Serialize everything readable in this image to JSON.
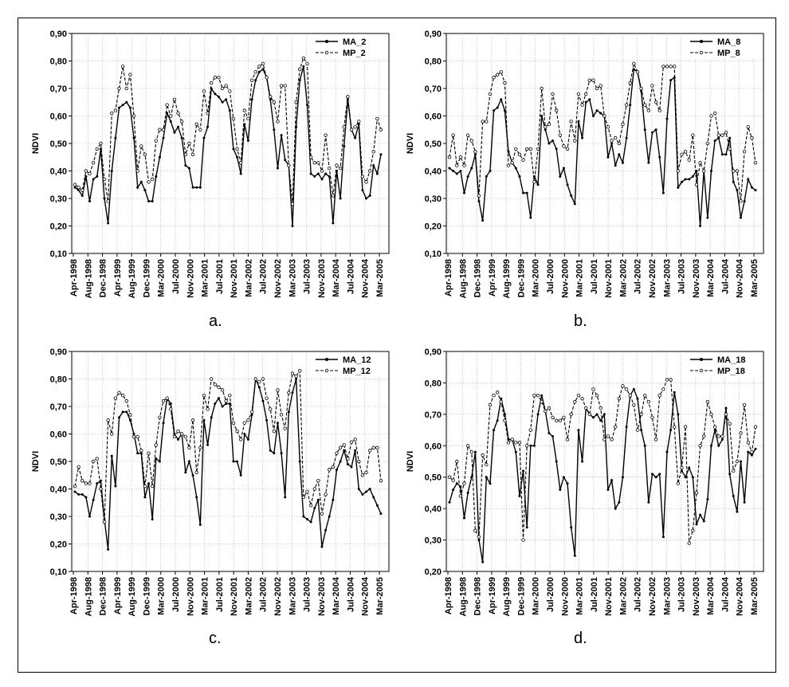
{
  "chart_data": [
    {
      "type": "line",
      "caption": "a.",
      "ylabel": "NDVI",
      "ylim": [
        0.1,
        0.9
      ],
      "yticks": [
        "0,10",
        "0,20",
        "0,30",
        "0,40",
        "0,50",
        "0,60",
        "0,70",
        "0,80",
        "0,90"
      ],
      "x_tick_labels": [
        "Apr-1998",
        "Aug-1998",
        "Dec-1998",
        "Apr-1999",
        "Aug-1999",
        "Dec-1999",
        "Mar-2000",
        "Jul-2000",
        "Nov-2000",
        "Mar-2001",
        "Jul-2001",
        "Nov-2001",
        "Mar-2002",
        "Jul-2002",
        "Nov-2002",
        "Mar-2003",
        "Jul-2003",
        "Nov-2003",
        "Mar-2004",
        "Jul-2004",
        "Nov-2004",
        "Mar-2005"
      ],
      "grid": true,
      "legend": "top-right",
      "series": [
        {
          "name": "MA_2",
          "style": "solid",
          "values": [
            0.34,
            0.33,
            0.31,
            0.38,
            0.29,
            0.37,
            0.38,
            0.48,
            0.3,
            0.21,
            0.4,
            0.52,
            0.63,
            0.64,
            0.65,
            0.63,
            0.52,
            0.34,
            0.36,
            0.33,
            0.29,
            0.29,
            0.38,
            0.45,
            0.52,
            0.61,
            0.58,
            0.54,
            0.56,
            0.52,
            0.42,
            0.41,
            0.34,
            0.34,
            0.34,
            0.52,
            0.56,
            0.7,
            0.68,
            0.67,
            0.65,
            0.66,
            0.62,
            0.48,
            0.45,
            0.39,
            0.57,
            0.51,
            0.66,
            0.73,
            0.76,
            0.77,
            0.74,
            0.66,
            0.55,
            0.41,
            0.53,
            0.44,
            0.42,
            0.2,
            0.56,
            0.73,
            0.78,
            0.64,
            0.39,
            0.38,
            0.39,
            0.37,
            0.39,
            0.38,
            0.21,
            0.4,
            0.3,
            0.49,
            0.66,
            0.55,
            0.52,
            0.57,
            0.33,
            0.3,
            0.31,
            0.42,
            0.39,
            0.46
          ]
        },
        {
          "name": "MP_2",
          "style": "dashed",
          "values": [
            0.35,
            0.34,
            0.33,
            0.4,
            0.39,
            0.43,
            0.48,
            0.5,
            0.37,
            0.29,
            0.61,
            0.62,
            0.7,
            0.78,
            0.7,
            0.75,
            0.6,
            0.4,
            0.49,
            0.46,
            0.36,
            0.37,
            0.51,
            0.55,
            0.55,
            0.64,
            0.6,
            0.66,
            0.61,
            0.58,
            0.46,
            0.5,
            0.46,
            0.57,
            0.55,
            0.69,
            0.61,
            0.72,
            0.74,
            0.74,
            0.7,
            0.71,
            0.69,
            0.59,
            0.48,
            0.43,
            0.62,
            0.59,
            0.73,
            0.76,
            0.78,
            0.79,
            0.74,
            0.67,
            0.65,
            0.58,
            0.71,
            0.71,
            0.42,
            0.28,
            0.65,
            0.77,
            0.81,
            0.79,
            0.45,
            0.43,
            0.43,
            0.4,
            0.53,
            0.41,
            0.31,
            0.42,
            0.41,
            0.56,
            0.67,
            0.55,
            0.56,
            0.58,
            0.38,
            0.36,
            0.4,
            0.47,
            0.59,
            0.55
          ]
        }
      ]
    },
    {
      "type": "line",
      "caption": "b.",
      "ylabel": "NDVI",
      "ylim": [
        0.1,
        0.9
      ],
      "yticks": [
        "0,10",
        "0,20",
        "0,30",
        "0,40",
        "0,50",
        "0,60",
        "0,70",
        "0,80",
        "0,90"
      ],
      "x_tick_labels": [
        "Apr-1998",
        "Aug-1998",
        "Dec-1998",
        "Apr-1999",
        "Aug-1999",
        "Dec-1999",
        "Mar-2000",
        "Jul-2000",
        "Nov-2000",
        "Mar-2001",
        "Jul-2001",
        "Nov-2001",
        "Mar-2002",
        "Jul-2002",
        "Nov-2002",
        "Mar-2003",
        "Jul-2003",
        "Nov-2003",
        "Mar-2004",
        "Jul-2004",
        "Nov-2004",
        "Mar-2005"
      ],
      "grid": true,
      "legend": "top-right",
      "series": [
        {
          "name": "MA_8",
          "style": "solid",
          "values": [
            0.41,
            0.4,
            0.39,
            0.4,
            0.32,
            0.38,
            0.41,
            0.46,
            0.29,
            0.22,
            0.38,
            0.4,
            0.62,
            0.63,
            0.66,
            0.62,
            0.47,
            0.43,
            0.41,
            0.38,
            0.32,
            0.32,
            0.23,
            0.38,
            0.35,
            0.6,
            0.55,
            0.5,
            0.51,
            0.48,
            0.38,
            0.41,
            0.35,
            0.31,
            0.28,
            0.58,
            0.52,
            0.65,
            0.66,
            0.6,
            0.62,
            0.61,
            0.6,
            0.45,
            0.5,
            0.42,
            0.46,
            0.43,
            0.52,
            0.64,
            0.77,
            0.76,
            0.69,
            0.55,
            0.43,
            0.54,
            0.55,
            0.45,
            0.32,
            0.59,
            0.73,
            0.74,
            0.34,
            0.36,
            0.37,
            0.37,
            0.38,
            0.4,
            0.2,
            0.4,
            0.23,
            0.4,
            0.51,
            0.52,
            0.46,
            0.46,
            0.52,
            0.36,
            0.33,
            0.23,
            0.29,
            0.37,
            0.34,
            0.33
          ]
        },
        {
          "name": "MP_8",
          "style": "dashed",
          "values": [
            0.45,
            0.53,
            0.42,
            0.45,
            0.42,
            0.53,
            0.51,
            0.47,
            0.31,
            0.58,
            0.58,
            0.68,
            0.74,
            0.75,
            0.76,
            0.72,
            0.42,
            0.43,
            0.48,
            0.46,
            0.44,
            0.48,
            0.48,
            0.36,
            0.48,
            0.7,
            0.56,
            0.57,
            0.68,
            0.62,
            0.53,
            0.49,
            0.48,
            0.58,
            0.51,
            0.68,
            0.64,
            0.68,
            0.73,
            0.73,
            0.7,
            0.71,
            0.6,
            0.56,
            0.51,
            0.52,
            0.5,
            0.57,
            0.64,
            0.72,
            0.79,
            0.76,
            0.7,
            0.64,
            0.62,
            0.71,
            0.65,
            0.62,
            0.78,
            0.78,
            0.78,
            0.78,
            0.4,
            0.46,
            0.47,
            0.44,
            0.53,
            0.35,
            0.43,
            0.4,
            0.5,
            0.6,
            0.61,
            0.53,
            0.53,
            0.54,
            0.48,
            0.4,
            0.4,
            0.29,
            0.47,
            0.56,
            0.52,
            0.43
          ]
        }
      ]
    },
    {
      "type": "line",
      "caption": "c.",
      "ylabel": "NDVI",
      "ylim": [
        0.1,
        0.9
      ],
      "yticks": [
        "0,10",
        "0,20",
        "0,30",
        "0,40",
        "0,50",
        "0,60",
        "0,70",
        "0,80",
        "0,90"
      ],
      "x_tick_labels": [
        "Apr-1998",
        "Aug-1998",
        "Dec-1998",
        "Apr-1999",
        "Aug-1999",
        "Dec-1999",
        "Mar-2000",
        "Jul-2000",
        "Nov-2000",
        "Mar-2001",
        "Jul-2001",
        "Nov-2001",
        "Mar-2002",
        "Jul-2002",
        "Nov-2002",
        "Mar-2003",
        "Jul-2003",
        "Nov-2003",
        "Mar-2004",
        "Jul-2004",
        "Nov-2004",
        "Mar-2005"
      ],
      "grid": true,
      "legend": "top-right",
      "series": [
        {
          "name": "MA_12",
          "style": "solid",
          "values": [
            0.39,
            0.38,
            0.38,
            0.37,
            0.3,
            0.36,
            0.42,
            0.43,
            0.29,
            0.18,
            0.52,
            0.41,
            0.66,
            0.68,
            0.68,
            0.65,
            0.6,
            0.53,
            0.53,
            0.37,
            0.42,
            0.29,
            0.51,
            0.5,
            0.64,
            0.73,
            0.71,
            0.6,
            0.58,
            0.6,
            0.46,
            0.5,
            0.45,
            0.37,
            0.27,
            0.65,
            0.56,
            0.66,
            0.71,
            0.73,
            0.7,
            0.71,
            0.71,
            0.5,
            0.5,
            0.45,
            0.6,
            0.58,
            0.67,
            0.8,
            0.77,
            0.72,
            0.65,
            0.54,
            0.53,
            0.64,
            0.53,
            0.37,
            0.68,
            0.75,
            0.8,
            0.5,
            0.3,
            0.29,
            0.28,
            0.33,
            0.36,
            0.19,
            0.25,
            0.3,
            0.36,
            0.47,
            0.5,
            0.54,
            0.49,
            0.48,
            0.54,
            0.4,
            0.38,
            0.39,
            0.4,
            0.37,
            0.34,
            0.31
          ]
        },
        {
          "name": "MP_12",
          "style": "dashed",
          "values": [
            0.41,
            0.48,
            0.43,
            0.42,
            0.42,
            0.5,
            0.51,
            0.4,
            0.28,
            0.65,
            0.6,
            0.73,
            0.75,
            0.74,
            0.72,
            0.67,
            0.59,
            0.59,
            0.54,
            0.41,
            0.53,
            0.41,
            0.56,
            0.66,
            0.72,
            0.73,
            0.69,
            0.59,
            0.61,
            0.6,
            0.59,
            0.55,
            0.65,
            0.46,
            0.55,
            0.74,
            0.69,
            0.8,
            0.78,
            0.77,
            0.76,
            0.72,
            0.74,
            0.64,
            0.61,
            0.58,
            0.64,
            0.65,
            0.68,
            0.8,
            0.79,
            0.8,
            0.73,
            0.69,
            0.61,
            0.76,
            0.67,
            0.62,
            0.75,
            0.82,
            0.81,
            0.83,
            0.37,
            0.39,
            0.34,
            0.4,
            0.43,
            0.31,
            0.38,
            0.47,
            0.48,
            0.53,
            0.55,
            0.56,
            0.51,
            0.57,
            0.58,
            0.5,
            0.45,
            0.46,
            0.54,
            0.55,
            0.55,
            0.43
          ]
        }
      ]
    },
    {
      "type": "line",
      "caption": "d.",
      "ylabel": "NDVI",
      "ylim": [
        0.2,
        0.9
      ],
      "yticks": [
        "0,20",
        "0,30",
        "0,40",
        "0,50",
        "0,60",
        "0,70",
        "0,80",
        "0,90"
      ],
      "x_tick_labels": [
        "Apr-1998",
        "Aug-1998",
        "Dec-1998",
        "Apr-1999",
        "Aug-1999",
        "Dec-1999",
        "Mar-2000",
        "Jul-2000",
        "Nov-2000",
        "Mar-2001",
        "Jul-2001",
        "Nov-2001",
        "Mar-2002",
        "Jul-2002",
        "Nov-2002",
        "Mar-2003",
        "Jul-2003",
        "Nov-2003",
        "Mar-2004",
        "Jul-2004",
        "Nov-2004",
        "Mar-2005"
      ],
      "grid": true,
      "legend": "top-right",
      "series": [
        {
          "name": "MA_18",
          "style": "solid",
          "values": [
            0.42,
            0.46,
            0.48,
            0.47,
            0.37,
            0.45,
            0.5,
            0.58,
            0.3,
            0.23,
            0.5,
            0.48,
            0.65,
            0.68,
            0.75,
            0.7,
            0.62,
            0.62,
            0.58,
            0.44,
            0.52,
            0.34,
            0.6,
            0.6,
            0.7,
            0.76,
            0.71,
            0.64,
            0.63,
            0.55,
            0.46,
            0.5,
            0.48,
            0.34,
            0.25,
            0.65,
            0.55,
            0.72,
            0.7,
            0.69,
            0.7,
            0.68,
            0.7,
            0.46,
            0.49,
            0.4,
            0.42,
            0.5,
            0.66,
            0.76,
            0.78,
            0.75,
            0.65,
            0.6,
            0.42,
            0.51,
            0.5,
            0.51,
            0.31,
            0.58,
            0.65,
            0.77,
            0.7,
            0.52,
            0.5,
            0.53,
            0.5,
            0.35,
            0.38,
            0.36,
            0.43,
            0.6,
            0.65,
            0.6,
            0.62,
            0.72,
            0.51,
            0.44,
            0.39,
            0.55,
            0.42,
            0.58,
            0.57,
            0.59
          ]
        },
        {
          "name": "MP_18",
          "style": "dashed",
          "values": [
            0.5,
            0.49,
            0.55,
            0.44,
            0.48,
            0.6,
            0.58,
            0.33,
            0.31,
            0.57,
            0.54,
            0.73,
            0.76,
            0.77,
            0.74,
            0.68,
            0.61,
            0.62,
            0.61,
            0.61,
            0.3,
            0.6,
            0.65,
            0.76,
            0.76,
            0.74,
            0.71,
            0.72,
            0.69,
            0.68,
            0.68,
            0.69,
            0.62,
            0.7,
            0.74,
            0.76,
            0.75,
            0.72,
            0.7,
            0.78,
            0.76,
            0.72,
            0.62,
            0.63,
            0.62,
            0.66,
            0.75,
            0.79,
            0.78,
            0.76,
            0.73,
            0.65,
            0.7,
            0.76,
            0.74,
            0.69,
            0.62,
            0.76,
            0.78,
            0.81,
            0.81,
            0.66,
            0.48,
            0.53,
            0.66,
            0.29,
            0.33,
            0.45,
            0.6,
            0.63,
            0.74,
            0.7,
            0.66,
            0.63,
            0.63,
            0.7,
            0.67,
            0.52,
            0.55,
            0.64,
            0.73,
            0.61,
            0.58,
            0.66
          ]
        }
      ]
    }
  ]
}
